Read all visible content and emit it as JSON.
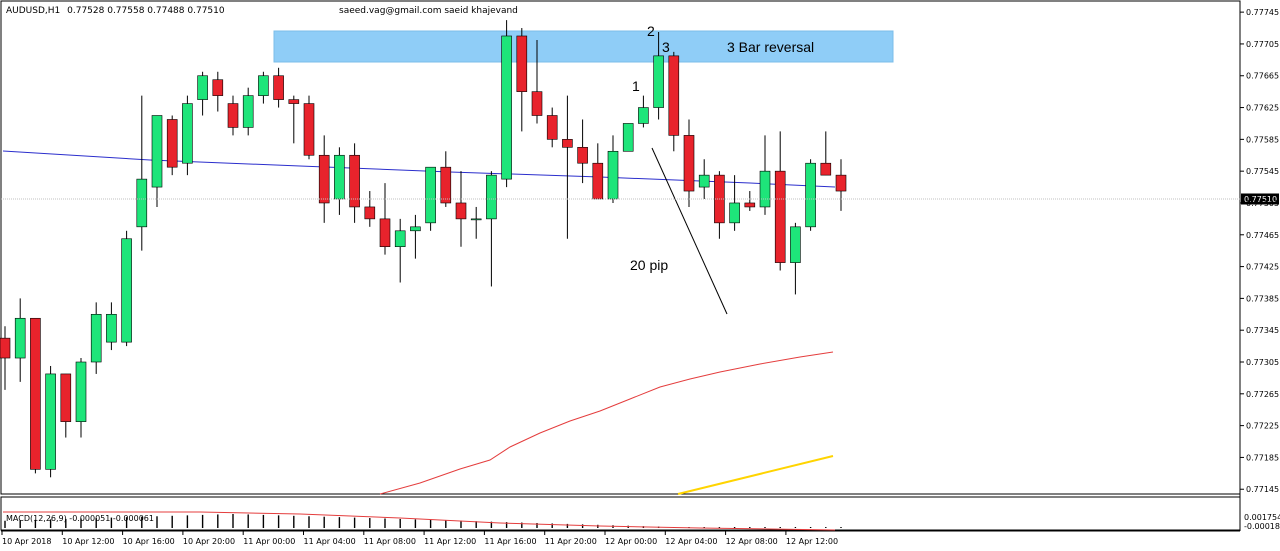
{
  "header": {
    "symbol": "AUDUSD,H1",
    "ohlc": "0.77528 0.77558 0.77488 0.77510",
    "watermark": "saeed.vag@gmail.com saeid khajevand"
  },
  "chart_data": {
    "type": "candlestick",
    "symbol": "AUDUSD",
    "timeframe": "H1",
    "y_ticks": [
      "0.77745",
      "0.77705",
      "0.77665",
      "0.77625",
      "0.77585",
      "0.77545",
      "0.77505",
      "0.77465",
      "0.77425",
      "0.77385",
      "0.77345",
      "0.77305",
      "0.77265",
      "0.77225",
      "0.77185",
      "0.77145"
    ],
    "ylim": [
      0.77139,
      0.77759
    ],
    "current_price": "0.77510",
    "x_ticks": [
      "10 Apr 2018",
      "10 Apr 12:00",
      "10 Apr 16:00",
      "10 Apr 20:00",
      "11 Apr 00:00",
      "11 Apr 04:00",
      "11 Apr 08:00",
      "11 Apr 12:00",
      "11 Apr 16:00",
      "11 Apr 20:00",
      "12 Apr 00:00",
      "12 Apr 04:00",
      "12 Apr 08:00",
      "12 Apr 12:00"
    ],
    "candles": [
      {
        "o": 0.77335,
        "h": 0.7735,
        "l": 0.7727,
        "c": 0.7731
      },
      {
        "o": 0.7731,
        "h": 0.77385,
        "l": 0.7728,
        "c": 0.7736
      },
      {
        "o": 0.7736,
        "h": 0.7736,
        "l": 0.77165,
        "c": 0.7717
      },
      {
        "o": 0.7717,
        "h": 0.773,
        "l": 0.7716,
        "c": 0.7729
      },
      {
        "o": 0.7729,
        "h": 0.7729,
        "l": 0.7721,
        "c": 0.7723
      },
      {
        "o": 0.7723,
        "h": 0.7731,
        "l": 0.7721,
        "c": 0.77305
      },
      {
        "o": 0.77305,
        "h": 0.7738,
        "l": 0.7729,
        "c": 0.77365
      },
      {
        "o": 0.7733,
        "h": 0.7738,
        "l": 0.7732,
        "c": 0.77365
      },
      {
        "o": 0.7733,
        "h": 0.7747,
        "l": 0.77325,
        "c": 0.7746
      },
      {
        "o": 0.77475,
        "h": 0.7764,
        "l": 0.77445,
        "c": 0.77535
      },
      {
        "o": 0.77525,
        "h": 0.77615,
        "l": 0.775,
        "c": 0.77615
      },
      {
        "o": 0.7761,
        "h": 0.77615,
        "l": 0.7754,
        "c": 0.7755
      },
      {
        "o": 0.77555,
        "h": 0.7764,
        "l": 0.7754,
        "c": 0.7763
      },
      {
        "o": 0.77635,
        "h": 0.7767,
        "l": 0.77615,
        "c": 0.77665
      },
      {
        "o": 0.7766,
        "h": 0.7767,
        "l": 0.7762,
        "c": 0.7764
      },
      {
        "o": 0.7763,
        "h": 0.7764,
        "l": 0.7759,
        "c": 0.776
      },
      {
        "o": 0.776,
        "h": 0.7765,
        "l": 0.7759,
        "c": 0.7764
      },
      {
        "o": 0.7764,
        "h": 0.7767,
        "l": 0.7763,
        "c": 0.77665
      },
      {
        "o": 0.77665,
        "h": 0.77675,
        "l": 0.77625,
        "c": 0.77635
      },
      {
        "o": 0.77635,
        "h": 0.7764,
        "l": 0.7758,
        "c": 0.7763
      },
      {
        "o": 0.7763,
        "h": 0.7764,
        "l": 0.7756,
        "c": 0.77565
      },
      {
        "o": 0.77565,
        "h": 0.7759,
        "l": 0.7748,
        "c": 0.77505
      },
      {
        "o": 0.7751,
        "h": 0.77575,
        "l": 0.7749,
        "c": 0.77565
      },
      {
        "o": 0.77565,
        "h": 0.7758,
        "l": 0.7748,
        "c": 0.775
      },
      {
        "o": 0.775,
        "h": 0.7752,
        "l": 0.77475,
        "c": 0.77485
      },
      {
        "o": 0.77485,
        "h": 0.7753,
        "l": 0.7744,
        "c": 0.7745
      },
      {
        "o": 0.7745,
        "h": 0.77485,
        "l": 0.77405,
        "c": 0.7747
      },
      {
        "o": 0.7747,
        "h": 0.7749,
        "l": 0.77435,
        "c": 0.77475
      },
      {
        "o": 0.7748,
        "h": 0.7755,
        "l": 0.7747,
        "c": 0.7755
      },
      {
        "o": 0.7755,
        "h": 0.7757,
        "l": 0.775,
        "c": 0.77505
      },
      {
        "o": 0.77505,
        "h": 0.77545,
        "l": 0.7745,
        "c": 0.77485
      },
      {
        "o": 0.77485,
        "h": 0.775,
        "l": 0.7746,
        "c": 0.77485
      },
      {
        "o": 0.77485,
        "h": 0.77545,
        "l": 0.774,
        "c": 0.7754
      },
      {
        "o": 0.77535,
        "h": 0.77735,
        "l": 0.77525,
        "c": 0.77715
      },
      {
        "o": 0.77715,
        "h": 0.77725,
        "l": 0.77595,
        "c": 0.77645
      },
      {
        "o": 0.77645,
        "h": 0.7771,
        "l": 0.77605,
        "c": 0.77615
      },
      {
        "o": 0.77615,
        "h": 0.77625,
        "l": 0.77575,
        "c": 0.77585
      },
      {
        "o": 0.77585,
        "h": 0.7764,
        "l": 0.7746,
        "c": 0.77575
      },
      {
        "o": 0.77575,
        "h": 0.7761,
        "l": 0.7753,
        "c": 0.77555
      },
      {
        "o": 0.77555,
        "h": 0.7758,
        "l": 0.7751,
        "c": 0.7751
      },
      {
        "o": 0.7751,
        "h": 0.7759,
        "l": 0.77505,
        "c": 0.7757
      },
      {
        "o": 0.7757,
        "h": 0.77605,
        "l": 0.7757,
        "c": 0.77605
      },
      {
        "o": 0.77605,
        "h": 0.7764,
        "l": 0.776,
        "c": 0.77625
      },
      {
        "o": 0.77625,
        "h": 0.7772,
        "l": 0.7761,
        "c": 0.7769
      },
      {
        "o": 0.7769,
        "h": 0.77695,
        "l": 0.7757,
        "c": 0.7759
      },
      {
        "o": 0.7759,
        "h": 0.7761,
        "l": 0.775,
        "c": 0.7752
      },
      {
        "o": 0.77525,
        "h": 0.7756,
        "l": 0.7751,
        "c": 0.7754
      },
      {
        "o": 0.7754,
        "h": 0.77545,
        "l": 0.7746,
        "c": 0.7748
      },
      {
        "o": 0.7748,
        "h": 0.7754,
        "l": 0.7747,
        "c": 0.77505
      },
      {
        "o": 0.77505,
        "h": 0.7752,
        "l": 0.77495,
        "c": 0.775
      },
      {
        "o": 0.775,
        "h": 0.7759,
        "l": 0.7749,
        "c": 0.77545
      },
      {
        "o": 0.77545,
        "h": 0.77595,
        "l": 0.7742,
        "c": 0.7743
      },
      {
        "o": 0.7743,
        "h": 0.7748,
        "l": 0.7739,
        "c": 0.77475
      },
      {
        "o": 0.77475,
        "h": 0.7756,
        "l": 0.7747,
        "c": 0.77555
      },
      {
        "o": 0.77555,
        "h": 0.77595,
        "l": 0.7754,
        "c": 0.7754
      },
      {
        "o": 0.7754,
        "h": 0.7756,
        "l": 0.77495,
        "c": 0.7752
      }
    ],
    "annotations": {
      "zone_label": "3 Bar reversal",
      "bar1": "1",
      "bar2": "2",
      "bar3": "3",
      "move_label": "20 pip"
    },
    "macd": {
      "label": "MACD(12,26,9) -0.000051 -0.000061",
      "y_ticks": [
        "0.001754",
        "-0.00018"
      ]
    }
  }
}
